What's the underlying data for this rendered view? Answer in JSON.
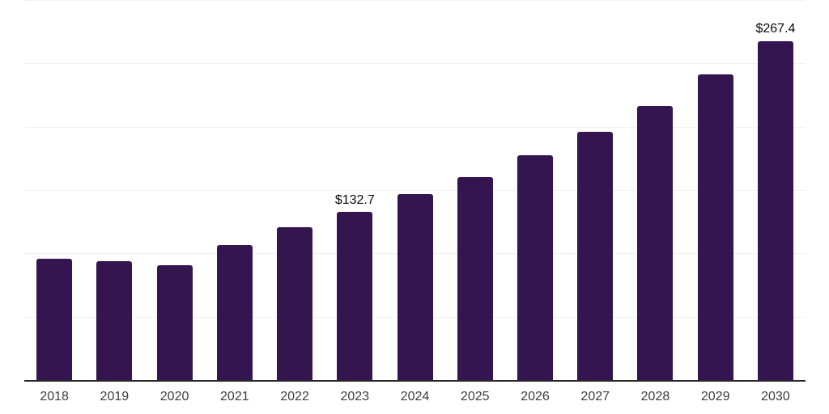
{
  "chart_data": {
    "type": "bar",
    "title": "",
    "xlabel": "",
    "ylabel": "",
    "categories": [
      "2018",
      "2019",
      "2020",
      "2021",
      "2022",
      "2023",
      "2024",
      "2025",
      "2026",
      "2027",
      "2028",
      "2029",
      "2030"
    ],
    "values": [
      95.9,
      93.9,
      90.8,
      106.8,
      120.9,
      132.7,
      146.5,
      160.5,
      177.2,
      195.7,
      216.2,
      241.2,
      267.4
    ],
    "bar_labels": [
      "",
      "",
      "",
      "",
      "",
      "$132.7",
      "",
      "",
      "",
      "",
      "",
      "",
      "$267.4"
    ],
    "ylim": [
      0,
      300
    ],
    "gridline_step": 50,
    "grid": "horizontal-only",
    "legend": "none",
    "y_tick_labels_visible": false,
    "colors": {
      "bar": "#34154f",
      "gridline": "#f1f1f1",
      "axis_line": "#262626",
      "bar_label_text": "#0a0a0a",
      "tick_label_text": "#3d3d3d",
      "background": "#ffffff"
    }
  }
}
